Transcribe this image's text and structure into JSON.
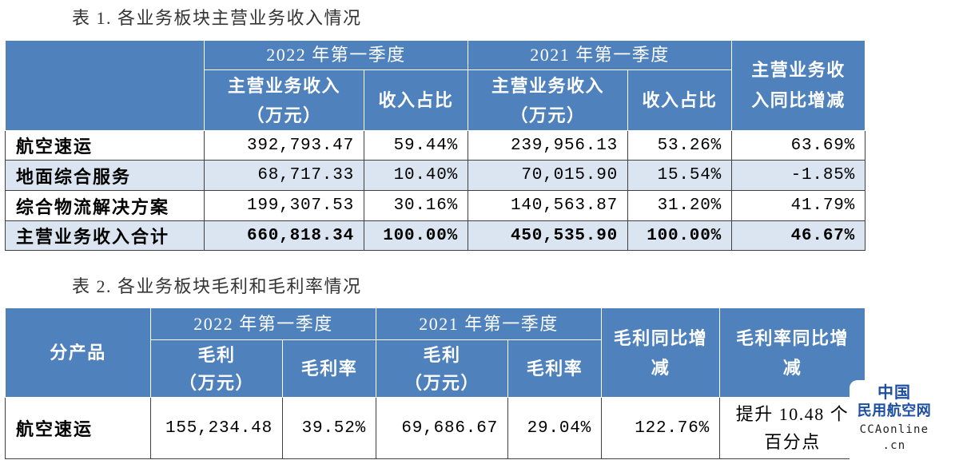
{
  "colors": {
    "header_bg": "#4f81bd",
    "header_text": "#ffffff",
    "band_bg": "#dbe5f1",
    "grid_line": "#404040",
    "title_text": "#333333",
    "watermark_blue": "#1c4fa1"
  },
  "table1": {
    "title": "表 1. 各业务板块主营业务收入情况",
    "header": {
      "period_2022": "2022 年第一季度",
      "period_2021": "2021 年第一季度",
      "revenue_2022": "主营业务收入",
      "revenue_unit_2022": "（万元）",
      "share_2022": "收入占比",
      "revenue_2021": "主营业务收入",
      "revenue_unit_2021": "（万元）",
      "share_2021": "收入占比",
      "yoy": "主营业务收入同比增减"
    },
    "rows": [
      {
        "segment": "航空速运",
        "revenue_2022": "392,793.47",
        "share_2022": "59.44%",
        "revenue_2021": "239,956.13",
        "share_2021": "53.26%",
        "yoy": "63.69%"
      },
      {
        "segment": "地面综合服务",
        "revenue_2022": "68,717.33",
        "share_2022": "10.40%",
        "revenue_2021": "70,015.90",
        "share_2021": "15.54%",
        "yoy": "-1.85%"
      },
      {
        "segment": "综合物流解决方案",
        "revenue_2022": "199,307.53",
        "share_2022": "30.16%",
        "revenue_2021": "140,563.87",
        "share_2021": "31.20%",
        "yoy": "41.79%"
      },
      {
        "segment": "主营业务收入合计",
        "revenue_2022": "660,818.34",
        "share_2022": "100.00%",
        "revenue_2021": "450,535.90",
        "share_2021": "100.00%",
        "yoy": "46.67%"
      }
    ]
  },
  "table2": {
    "title": "表 2. 各业务板块毛利和毛利率情况",
    "header": {
      "product": "分产品",
      "period_2022": "2022 年第一季度",
      "period_2021": "2021 年第一季度",
      "gross_profit_2022": "毛利",
      "gross_profit_unit_2022": "（万元）",
      "margin_2022": "毛利率",
      "gross_profit_2021": "毛利",
      "gross_profit_unit_2021": "（万元）",
      "margin_2021": "毛利率",
      "gross_profit_yoy": "毛利同比增减",
      "margin_yoy": "毛利率同比增减"
    },
    "rows": [
      {
        "product": "航空速运",
        "gross_profit_2022": "155,234.48",
        "margin_2022": "39.52%",
        "gross_profit_2021": "69,686.67",
        "margin_2021": "29.04%",
        "gross_profit_yoy": "122.76%",
        "margin_yoy": "提升 10.48 个百分点"
      }
    ]
  },
  "watermark": {
    "line1": "中国",
    "line2": "民用航空网",
    "line3": "CCAonline",
    "line4": ".cn"
  }
}
